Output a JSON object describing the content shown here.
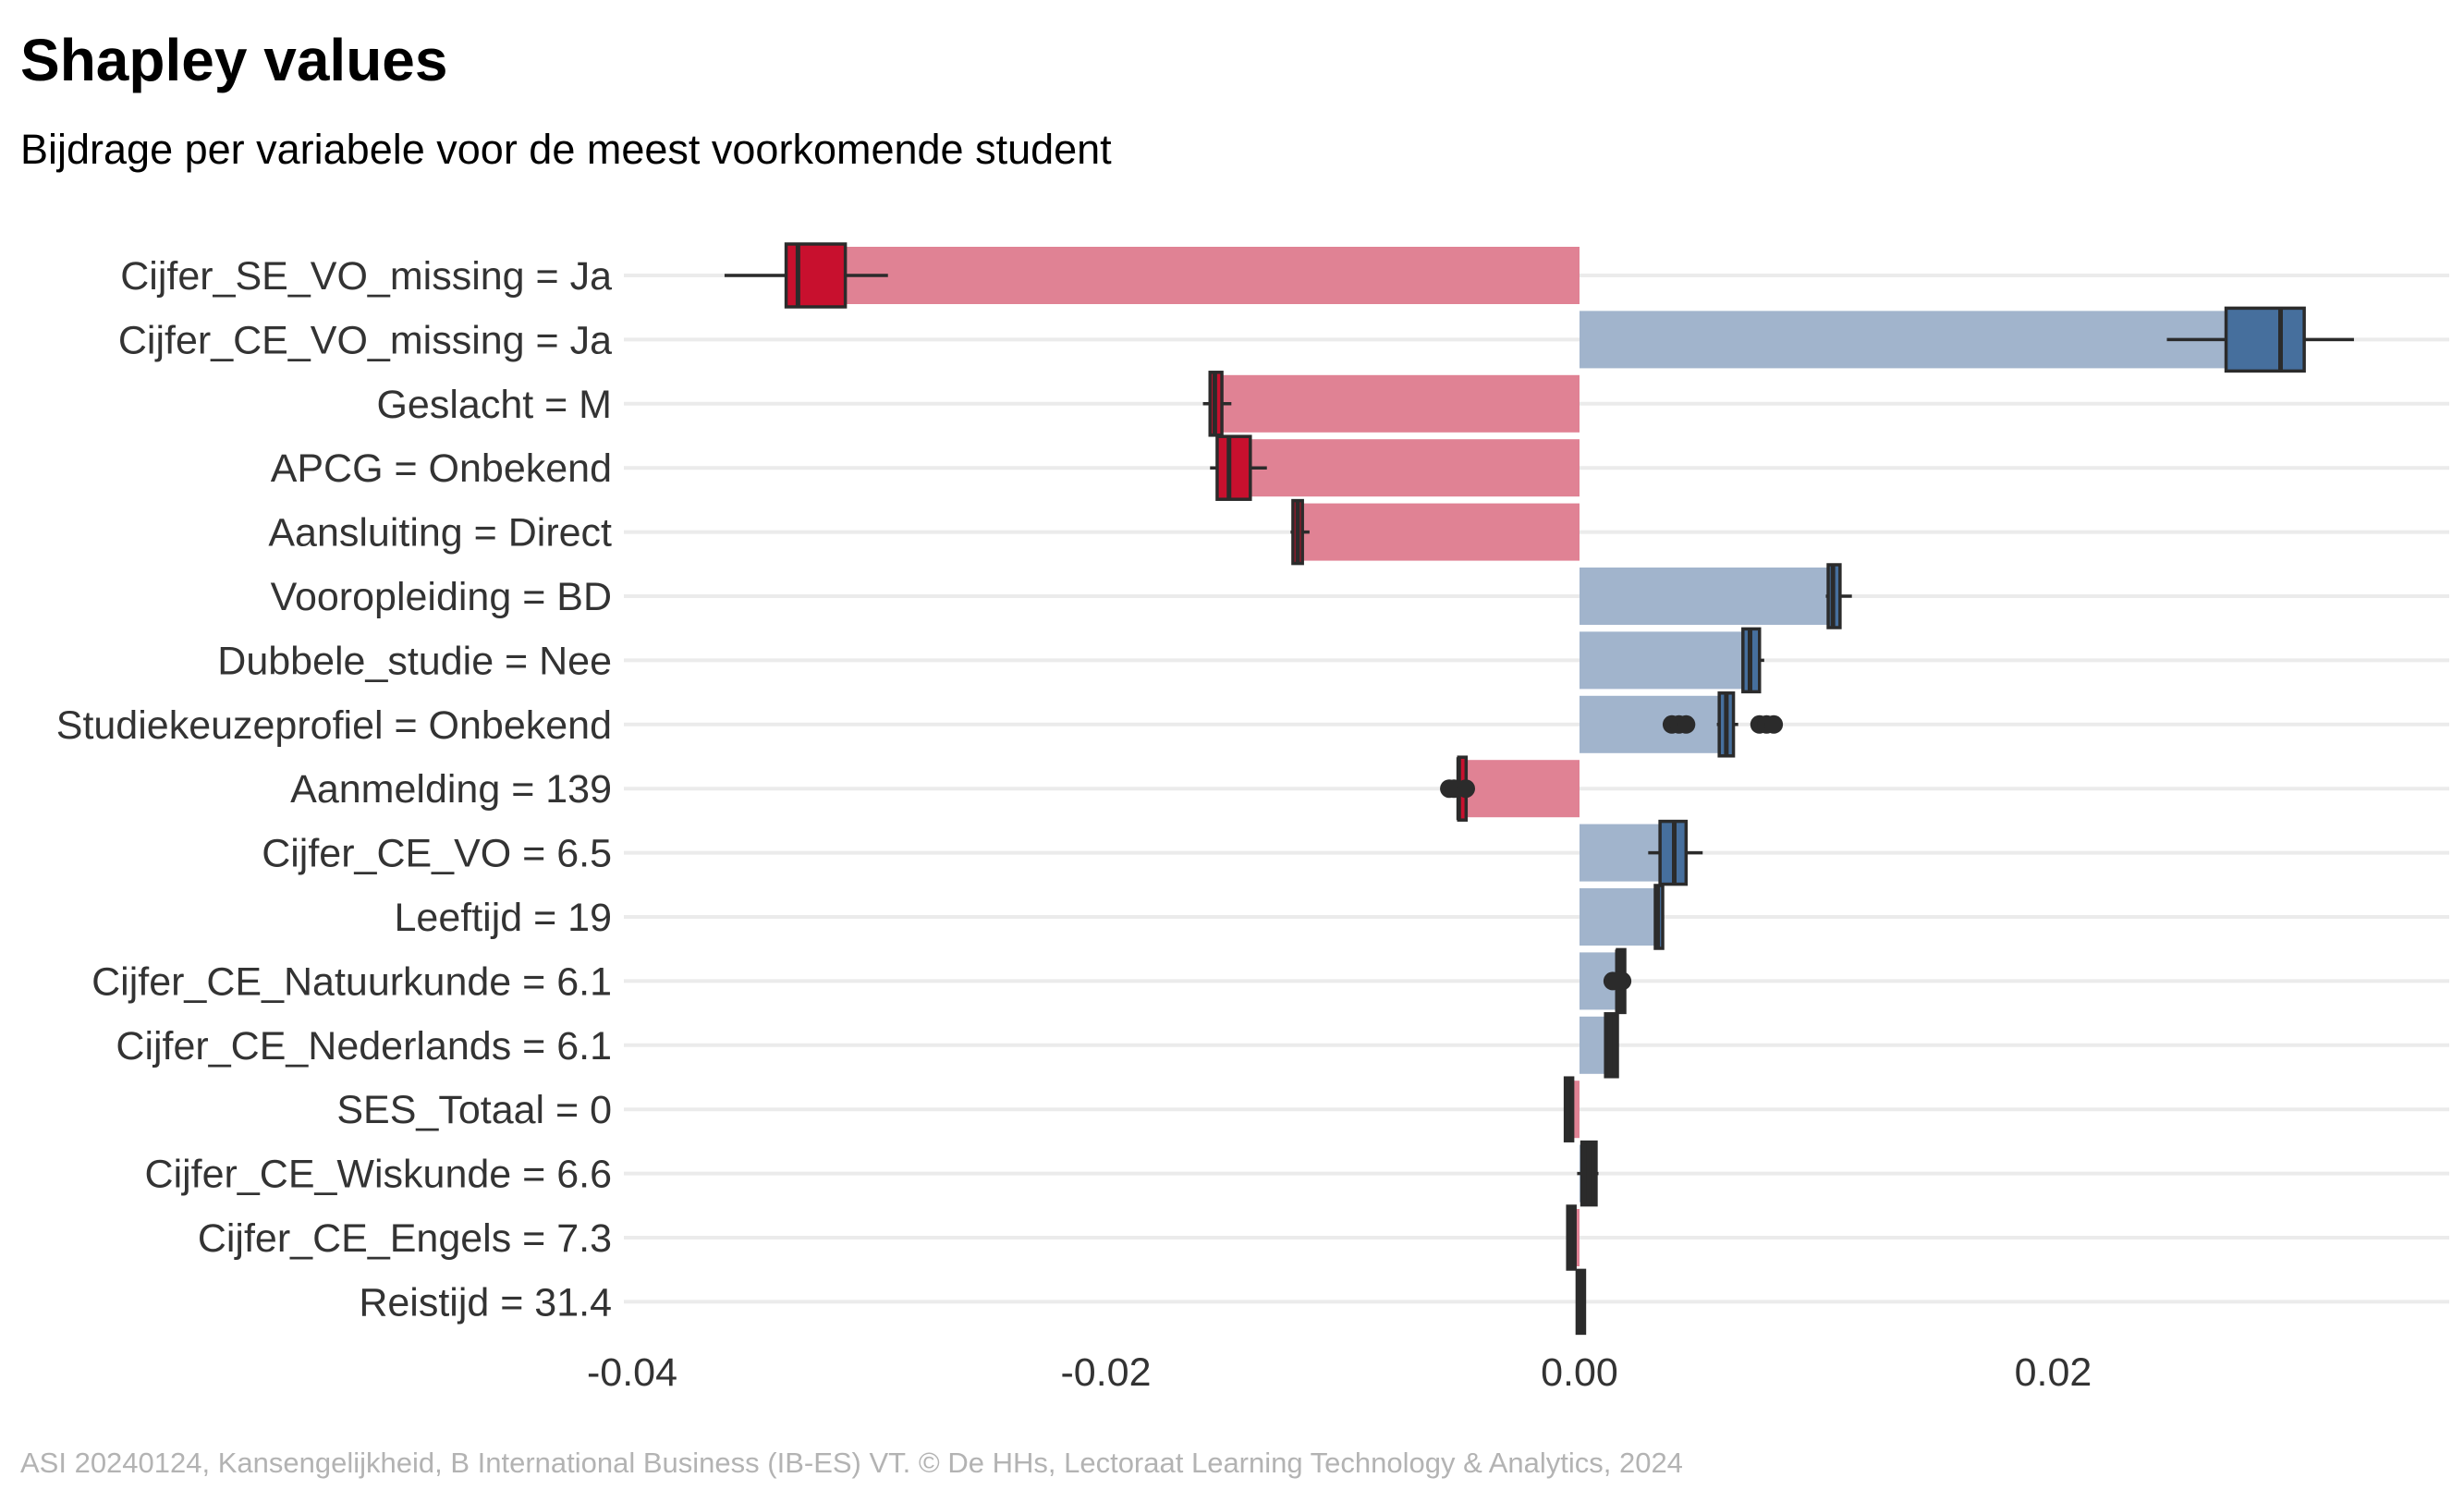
{
  "title": "Shapley values",
  "subtitle": "Bijdrage per variabele voor de meest voorkomende student",
  "caption": "ASI 20240124, Kansengelijkheid, B International Business (IB-ES) VT. © De HHs, Lectoraat Learning Technology & Analytics, 2024",
  "colors": {
    "negative_bar": "#e08294",
    "positive_bar": "#a1b4cc",
    "negative_box": "#c8102e",
    "positive_box": "#466f9d",
    "whisker": "#2b2b2b",
    "grid": "#ebebeb"
  },
  "chart_data": {
    "type": "bar",
    "orientation": "horizontal",
    "xlim": [
      -0.04,
      0.036
    ],
    "x_ticks": [
      -0.04,
      -0.02,
      0.0,
      0.02
    ],
    "x_tick_labels": [
      "-0.04",
      "-0.02",
      "0.00",
      "0.02"
    ],
    "grid": true,
    "categories": [
      "Cijfer_SE_VO_missing = Ja",
      "Cijfer_CE_VO_missing = Ja",
      "Geslacht = M",
      "APCG = Onbekend",
      "Aansluiting = Direct",
      "Vooropleiding = BD",
      "Dubbele_studie = Nee",
      "Studiekeuzeprofiel = Onbekend",
      "Aanmelding = 139",
      "Cijfer_CE_VO = 6.5",
      "Leeftijd = 19",
      "Cijfer_CE_Natuurkunde = 6.1",
      "Cijfer_CE_Nederlands = 6.1",
      "SES_Totaal = 0",
      "Cijfer_CE_Wiskunde = 6.6",
      "Cijfer_CE_Engels = 7.3",
      "Reistijd = 31.4"
    ],
    "values": [
      -0.0323,
      0.029,
      -0.0152,
      -0.0145,
      -0.0119,
      0.0105,
      0.0072,
      0.0061,
      -0.0051,
      0.004,
      0.0033,
      0.0016,
      0.0014,
      -0.0005,
      0.0004,
      -0.0004,
      0.0
    ],
    "boxplots": [
      {
        "min": -0.0361,
        "q1": -0.0335,
        "median": -0.033,
        "q3": -0.031,
        "max": -0.0292,
        "outliers": []
      },
      {
        "min": 0.0248,
        "q1": 0.0273,
        "median": 0.0296,
        "q3": 0.0306,
        "max": 0.0327,
        "outliers": []
      },
      {
        "min": -0.0159,
        "q1": -0.0156,
        "median": -0.0154,
        "q3": -0.0151,
        "max": -0.0147,
        "outliers": []
      },
      {
        "min": -0.0156,
        "q1": -0.0153,
        "median": -0.0148,
        "q3": -0.0139,
        "max": -0.0132,
        "outliers": []
      },
      {
        "min": -0.0122,
        "q1": -0.0121,
        "median": -0.0119,
        "q3": -0.0117,
        "max": -0.0114,
        "outliers": []
      },
      {
        "min": 0.0104,
        "q1": 0.0105,
        "median": 0.0107,
        "q3": 0.011,
        "max": 0.0115,
        "outliers": []
      },
      {
        "min": 0.0069,
        "q1": 0.0069,
        "median": 0.0072,
        "q3": 0.0076,
        "max": 0.0078,
        "outliers": []
      },
      {
        "min": 0.0058,
        "q1": 0.0059,
        "median": 0.0062,
        "q3": 0.0065,
        "max": 0.0067,
        "outliers": [
          0.0039,
          0.0042,
          0.0045,
          0.0076,
          0.0079,
          0.0082
        ]
      },
      {
        "min": -0.0051,
        "q1": -0.0051,
        "median": -0.0051,
        "q3": -0.005,
        "max": -0.005,
        "outliers": [
          -0.0055,
          -0.0053,
          -0.0048
        ]
      },
      {
        "min": 0.0029,
        "q1": 0.0034,
        "median": 0.004,
        "q3": 0.0045,
        "max": 0.0052,
        "outliers": []
      },
      {
        "min": 0.0032,
        "q1": 0.0032,
        "median": 0.0033,
        "q3": 0.0034,
        "max": 0.0034,
        "outliers": []
      },
      {
        "min": 0.0016,
        "q1": 0.0016,
        "median": 0.0016,
        "q3": 0.0017,
        "max": 0.0017,
        "outliers": [
          0.0014,
          0.0018,
          0.0016
        ]
      },
      {
        "min": 0.0011,
        "q1": 0.0011,
        "median": 0.0013,
        "q3": 0.0016,
        "max": 0.0016,
        "outliers": []
      },
      {
        "min": -0.0006,
        "q1": -0.0006,
        "median": -0.0005,
        "q3": -0.0004,
        "max": -0.0004,
        "outliers": []
      },
      {
        "min": -0.0001,
        "q1": 0.0001,
        "median": 0.0004,
        "q3": 0.0007,
        "max": 0.0008,
        "outliers": []
      },
      {
        "min": -0.0005,
        "q1": -0.0005,
        "median": -0.0004,
        "q3": -0.0003,
        "max": -0.0003,
        "outliers": []
      },
      {
        "min": -0.0001,
        "q1": -0.0001,
        "median": 0.0,
        "q3": 0.0001,
        "max": 0.0001,
        "outliers": []
      }
    ]
  }
}
